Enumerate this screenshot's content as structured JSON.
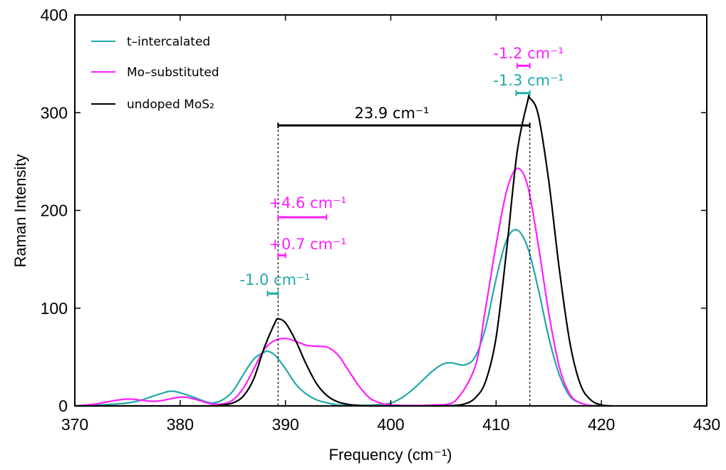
{
  "chart_data": {
    "type": "line",
    "xlabel": "Frequency (cm⁻¹)",
    "ylabel": "Raman Intensity",
    "xlim": [
      370,
      430
    ],
    "ylim": [
      0,
      400
    ],
    "xticks": [
      370,
      380,
      390,
      400,
      410,
      420,
      430
    ],
    "yticks": [
      0,
      100,
      200,
      300,
      400
    ],
    "grid": false,
    "legend_position": "top-left",
    "colors": {
      "t_intercalated": "#20a8a8",
      "mo_substituted": "#ff1eff",
      "undoped": "#000000"
    },
    "series": [
      {
        "name": "t–intercalated",
        "color": "#20a8a8",
        "x": [
          370,
          374,
          376,
          378,
          379.3,
          381,
          382,
          383,
          384,
          385,
          386,
          387,
          388,
          388.3,
          389,
          390,
          391,
          392,
          393,
          394,
          395,
          396,
          397,
          398,
          399,
          400,
          401,
          402,
          403,
          404,
          405,
          405.8,
          407,
          408,
          409,
          410,
          411,
          412,
          413,
          414,
          415,
          416,
          417,
          418,
          419,
          420
        ],
        "y": [
          0,
          2,
          5,
          12,
          15,
          10,
          6,
          3,
          6,
          15,
          32,
          48,
          55,
          56,
          52,
          38,
          22,
          12,
          6,
          3,
          1,
          0.5,
          0.5,
          0.8,
          1.5,
          3,
          8,
          16,
          26,
          36,
          43,
          44,
          42,
          50,
          80,
          130,
          170,
          180,
          162,
          120,
          70,
          32,
          10,
          3,
          0.5,
          0
        ]
      },
      {
        "name": "Mo–substituted",
        "color": "#ff1eff",
        "x": [
          370,
          372,
          373,
          375,
          377,
          378,
          380,
          381,
          382,
          383,
          384,
          385,
          386,
          387,
          388,
          389,
          390,
          391,
          392,
          393,
          394,
          395,
          396,
          397,
          398,
          399,
          400,
          402,
          404,
          406,
          408,
          409,
          410,
          411,
          412,
          413,
          414,
          415,
          416,
          417,
          418,
          419,
          420
        ],
        "y": [
          0,
          2,
          4,
          7,
          5,
          5,
          9,
          8,
          5,
          2,
          2,
          6,
          18,
          38,
          58,
          67,
          69,
          66,
          62,
          61,
          60,
          52,
          36,
          20,
          8,
          3,
          1,
          0.5,
          1,
          4,
          40,
          100,
          165,
          220,
          243,
          225,
          165,
          95,
          40,
          12,
          3,
          0.5,
          0
        ]
      },
      {
        "name": "undoped MoS₂",
        "color": "#000000",
        "x": [
          370,
          380,
          383,
          384,
          385,
          386,
          387,
          388,
          389,
          389.3,
          390,
          391,
          392,
          393,
          394,
          395,
          396,
          397,
          398,
          400,
          404,
          406,
          407,
          408,
          409,
          410,
          411,
          412,
          413,
          413.2,
          414,
          415,
          416,
          417,
          418,
          419,
          420,
          421
        ],
        "y": [
          0,
          0,
          0,
          1,
          3,
          10,
          28,
          60,
          85,
          89,
          85,
          66,
          42,
          22,
          10,
          4,
          1.5,
          0.5,
          0,
          0,
          0,
          0.5,
          2,
          8,
          25,
          70,
          160,
          260,
          312,
          315,
          298,
          230,
          140,
          65,
          22,
          6,
          1,
          0
        ]
      }
    ],
    "annotations": {
      "separation": "23.9 cm⁻¹",
      "e2g_ti": "-1.0 cm⁻¹",
      "e2g_mo_1": "+0.7 cm⁻¹",
      "e2g_mo_2": "+4.6 cm⁻¹",
      "a1g_mo": "-1.2 cm⁻¹",
      "a1g_ti": "-1.3 cm⁻¹"
    },
    "reference_lines_x": [
      389.3,
      413.2
    ]
  }
}
